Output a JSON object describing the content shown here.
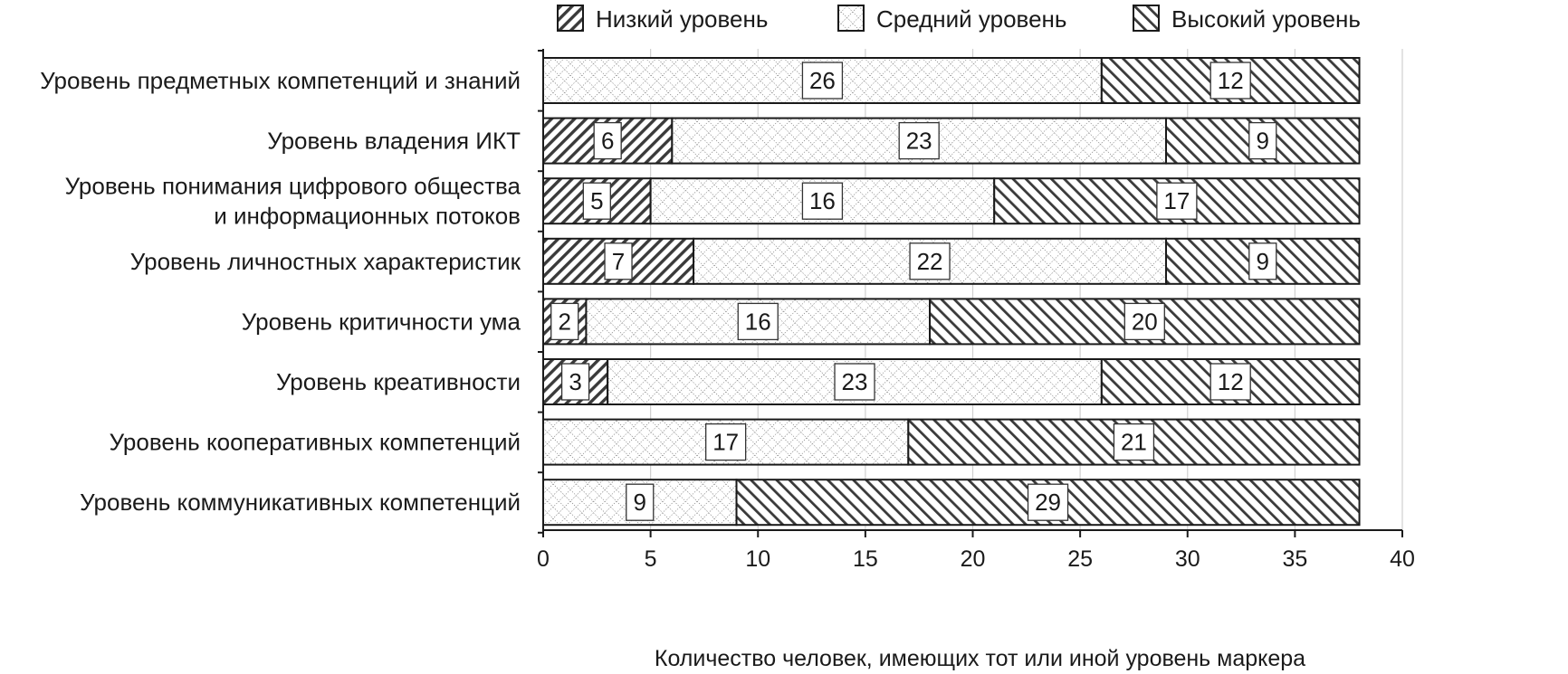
{
  "chart_data": {
    "type": "bar",
    "orientation": "horizontal",
    "stacked": true,
    "title": "",
    "xlabel": "Количество человек, имеющих тот или иной уровень маркера",
    "ylabel": "",
    "xlim": [
      0,
      40
    ],
    "xticks": [
      0,
      5,
      10,
      15,
      20,
      25,
      30,
      35,
      40
    ],
    "grid": "vertical",
    "legend_position": "top",
    "categories": [
      [
        "Уровень предметных компетенций и знаний"
      ],
      [
        "Уровень владения ИКТ"
      ],
      [
        "Уровень понимания цифрового общества",
        "и информационных потоков"
      ],
      [
        "Уровень личностных характеристик"
      ],
      [
        "Уровень критичности ума"
      ],
      [
        "Уровень креативности"
      ],
      [
        "Уровень кооперативных компетенций"
      ],
      [
        "Уровень коммуникативных компетенций"
      ]
    ],
    "series": [
      {
        "name": "Низкий уровень",
        "pattern": "diagonal-up",
        "values": [
          0,
          6,
          5,
          7,
          2,
          3,
          0,
          0
        ]
      },
      {
        "name": "Средний уровень",
        "pattern": "crosshatch",
        "values": [
          26,
          23,
          16,
          22,
          16,
          23,
          17,
          9
        ]
      },
      {
        "name": "Высокий уровень",
        "pattern": "diagonal-down",
        "values": [
          12,
          9,
          17,
          9,
          20,
          12,
          21,
          29
        ]
      }
    ],
    "colors": {
      "ink": "#1a1a1a",
      "hatch": "#3a3a3a",
      "grid": "#d0d0d0"
    }
  }
}
